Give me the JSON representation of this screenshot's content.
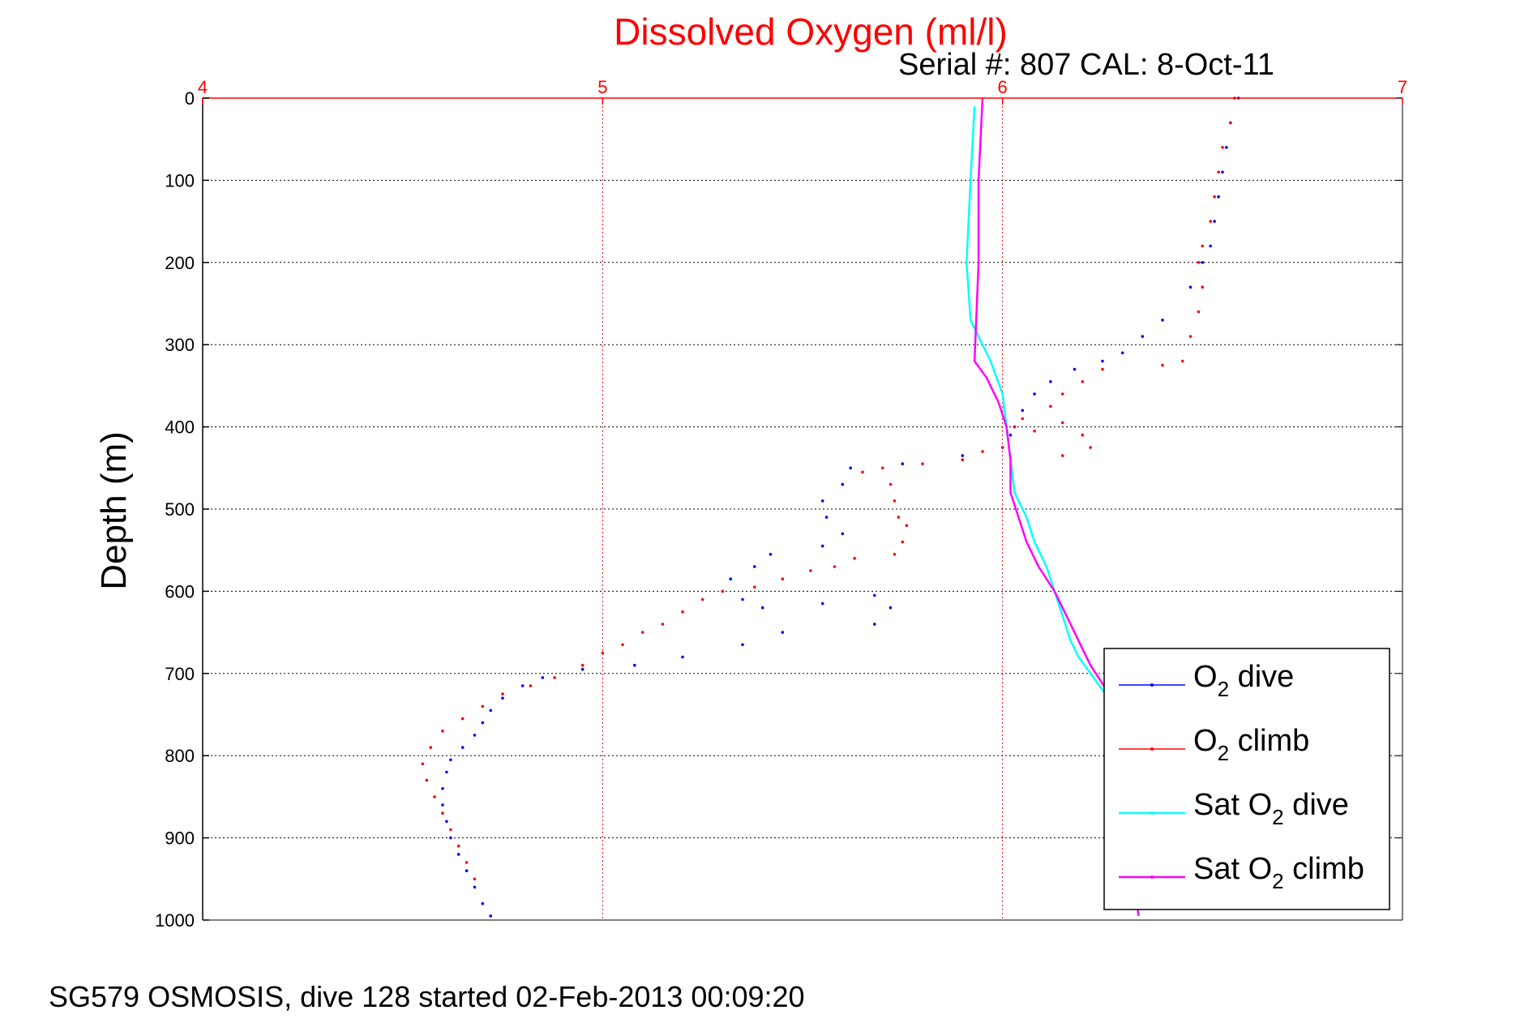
{
  "chart_data": {
    "type": "line",
    "title": "Dissolved Oxygen (ml/l)",
    "subtitle": "Serial #: 807  CAL: 8-Oct-11",
    "footer": "SG579 OSMOSIS, dive 128 started 02-Feb-2013 00:09:20",
    "ylabel": "Depth (m)",
    "xlabel": "",
    "xlim": [
      4,
      7
    ],
    "ylim": [
      0,
      1000
    ],
    "y_reversed": true,
    "x_axis_position": "top",
    "x_ticks": [
      "4",
      "5",
      "6",
      "7"
    ],
    "y_ticks": [
      "0",
      "100",
      "200",
      "300",
      "400",
      "500",
      "600",
      "700",
      "800",
      "900",
      "1000"
    ],
    "grid": true,
    "legend_placement": "bottom-right",
    "colors": {
      "o2_dive": "#0000ff",
      "o2_climb": "#ff0000",
      "sat_dive": "#00ffff",
      "sat_climb": "#ff00ff",
      "top_axis": "#ff0000",
      "grid_x": "#ff0000",
      "grid_y": "#000000"
    },
    "series": [
      {
        "name": "O2 dive",
        "label_main": "O",
        "label_sub": "2",
        "label_rest": " dive",
        "style": "dots",
        "color": "#0000ff",
        "points": [
          [
            6.59,
            0
          ],
          [
            6.57,
            30
          ],
          [
            6.56,
            60
          ],
          [
            6.55,
            90
          ],
          [
            6.54,
            120
          ],
          [
            6.53,
            150
          ],
          [
            6.52,
            180
          ],
          [
            6.5,
            200
          ],
          [
            6.47,
            230
          ],
          [
            6.4,
            270
          ],
          [
            6.35,
            290
          ],
          [
            6.3,
            310
          ],
          [
            6.25,
            320
          ],
          [
            6.18,
            330
          ],
          [
            6.12,
            345
          ],
          [
            6.08,
            360
          ],
          [
            6.05,
            380
          ],
          [
            6.03,
            400
          ],
          [
            6.02,
            410
          ],
          [
            6.0,
            425
          ],
          [
            5.9,
            435
          ],
          [
            5.75,
            445
          ],
          [
            5.62,
            450
          ],
          [
            5.6,
            470
          ],
          [
            5.55,
            490
          ],
          [
            5.56,
            510
          ],
          [
            5.6,
            530
          ],
          [
            5.55,
            545
          ],
          [
            5.42,
            555
          ],
          [
            5.38,
            570
          ],
          [
            5.32,
            585
          ],
          [
            5.3,
            600
          ],
          [
            5.35,
            610
          ],
          [
            5.4,
            620
          ],
          [
            5.55,
            615
          ],
          [
            5.68,
            605
          ],
          [
            5.72,
            620
          ],
          [
            5.68,
            640
          ],
          [
            5.45,
            650
          ],
          [
            5.35,
            665
          ],
          [
            5.2,
            680
          ],
          [
            5.08,
            690
          ],
          [
            4.95,
            695
          ],
          [
            4.85,
            705
          ],
          [
            4.8,
            715
          ],
          [
            4.75,
            730
          ],
          [
            4.72,
            745
          ],
          [
            4.7,
            760
          ],
          [
            4.68,
            775
          ],
          [
            4.65,
            790
          ],
          [
            4.62,
            805
          ],
          [
            4.61,
            820
          ],
          [
            4.6,
            840
          ],
          [
            4.6,
            860
          ],
          [
            4.61,
            880
          ],
          [
            4.62,
            900
          ],
          [
            4.64,
            920
          ],
          [
            4.66,
            940
          ],
          [
            4.68,
            960
          ],
          [
            4.7,
            980
          ],
          [
            4.72,
            995
          ]
        ]
      },
      {
        "name": "O2 climb",
        "label_main": "O",
        "label_sub": "2",
        "label_rest": " climb",
        "style": "dots",
        "color": "#ff0000",
        "points": [
          [
            6.58,
            0
          ],
          [
            6.57,
            30
          ],
          [
            6.55,
            60
          ],
          [
            6.54,
            90
          ],
          [
            6.53,
            120
          ],
          [
            6.52,
            150
          ],
          [
            6.5,
            180
          ],
          [
            6.49,
            200
          ],
          [
            6.5,
            230
          ],
          [
            6.49,
            260
          ],
          [
            6.47,
            290
          ],
          [
            6.45,
            320
          ],
          [
            6.4,
            325
          ],
          [
            6.25,
            330
          ],
          [
            6.2,
            345
          ],
          [
            6.15,
            360
          ],
          [
            6.12,
            375
          ],
          [
            6.15,
            395
          ],
          [
            6.2,
            410
          ],
          [
            6.22,
            425
          ],
          [
            6.15,
            435
          ],
          [
            6.08,
            405
          ],
          [
            6.05,
            390
          ],
          [
            6.03,
            400
          ],
          [
            6.0,
            425
          ],
          [
            5.95,
            430
          ],
          [
            5.9,
            440
          ],
          [
            5.8,
            445
          ],
          [
            5.7,
            450
          ],
          [
            5.65,
            455
          ],
          [
            5.72,
            470
          ],
          [
            5.73,
            490
          ],
          [
            5.74,
            510
          ],
          [
            5.76,
            520
          ],
          [
            5.75,
            540
          ],
          [
            5.73,
            555
          ],
          [
            5.63,
            560
          ],
          [
            5.58,
            570
          ],
          [
            5.52,
            575
          ],
          [
            5.45,
            585
          ],
          [
            5.38,
            595
          ],
          [
            5.3,
            600
          ],
          [
            5.25,
            610
          ],
          [
            5.2,
            625
          ],
          [
            5.15,
            640
          ],
          [
            5.1,
            650
          ],
          [
            5.05,
            665
          ],
          [
            5.0,
            675
          ],
          [
            4.95,
            690
          ],
          [
            4.88,
            705
          ],
          [
            4.82,
            715
          ],
          [
            4.75,
            725
          ],
          [
            4.7,
            740
          ],
          [
            4.65,
            755
          ],
          [
            4.6,
            770
          ],
          [
            4.57,
            790
          ],
          [
            4.55,
            810
          ],
          [
            4.56,
            830
          ],
          [
            4.58,
            850
          ],
          [
            4.6,
            870
          ],
          [
            4.62,
            890
          ],
          [
            4.64,
            910
          ],
          [
            4.66,
            930
          ],
          [
            4.68,
            950
          ]
        ]
      },
      {
        "name": "Sat O2 dive",
        "label_main": "Sat O",
        "label_sub": "2",
        "label_rest": " dive",
        "style": "line",
        "color": "#00ffff",
        "points": [
          [
            5.93,
            10
          ],
          [
            5.92,
            100
          ],
          [
            5.91,
            200
          ],
          [
            5.92,
            270
          ],
          [
            5.94,
            290
          ],
          [
            5.97,
            320
          ],
          [
            6.0,
            360
          ],
          [
            6.01,
            400
          ],
          [
            6.02,
            440
          ],
          [
            6.03,
            480
          ],
          [
            6.06,
            510
          ],
          [
            6.08,
            540
          ],
          [
            6.11,
            570
          ],
          [
            6.13,
            600
          ],
          [
            6.15,
            630
          ],
          [
            6.17,
            660
          ],
          [
            6.19,
            680
          ],
          [
            6.22,
            700
          ],
          [
            6.25,
            720
          ],
          [
            6.28,
            740
          ],
          [
            6.3,
            760
          ],
          [
            6.31,
            800
          ],
          [
            6.32,
            850
          ],
          [
            6.32,
            900
          ],
          [
            6.33,
            950
          ],
          [
            6.34,
            995
          ]
        ]
      },
      {
        "name": "Sat O2 climb",
        "label_main": "Sat O",
        "label_sub": "2",
        "label_rest": " climb",
        "style": "line",
        "color": "#ff00ff",
        "points": [
          [
            5.95,
            0
          ],
          [
            5.94,
            100
          ],
          [
            5.94,
            200
          ],
          [
            5.93,
            320
          ],
          [
            5.96,
            340
          ],
          [
            5.99,
            370
          ],
          [
            6.01,
            400
          ],
          [
            6.02,
            440
          ],
          [
            6.02,
            480
          ],
          [
            6.04,
            510
          ],
          [
            6.06,
            540
          ],
          [
            6.09,
            570
          ],
          [
            6.13,
            600
          ],
          [
            6.16,
            630
          ],
          [
            6.18,
            650
          ],
          [
            6.2,
            670
          ],
          [
            6.22,
            690
          ],
          [
            6.24,
            705
          ],
          [
            6.26,
            720
          ],
          [
            6.28,
            740
          ],
          [
            6.3,
            760
          ],
          [
            6.31,
            800
          ],
          [
            6.32,
            850
          ],
          [
            6.33,
            900
          ],
          [
            6.33,
            950
          ],
          [
            6.34,
            995
          ]
        ]
      }
    ]
  }
}
